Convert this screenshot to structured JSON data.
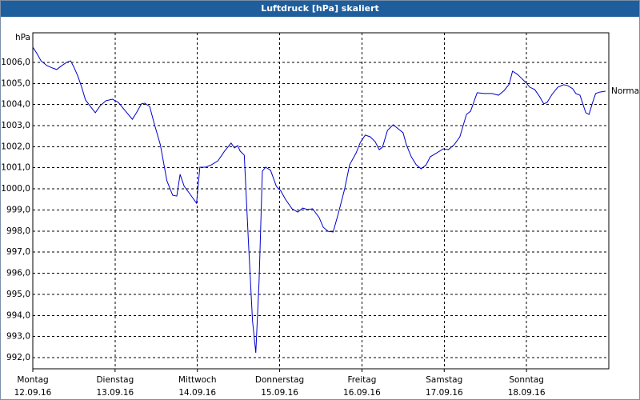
{
  "chart_data": {
    "type": "line",
    "title": "Luftdruck [hPa] skaliert",
    "y_label": "hPa",
    "annotation": "Normal",
    "grid": true,
    "xlim": [
      0,
      7
    ],
    "xticks": [
      {
        "value": 0,
        "label": [
          "Montag",
          "12.09.16"
        ]
      },
      {
        "value": 1,
        "label": [
          "Dienstag",
          "13.09.16"
        ]
      },
      {
        "value": 2,
        "label": [
          "Mittwoch",
          "14.09.16"
        ]
      },
      {
        "value": 3,
        "label": [
          "Donnerstag",
          "15.09.16"
        ]
      },
      {
        "value": 4,
        "label": [
          "Freitag",
          "16.09.16"
        ]
      },
      {
        "value": 5,
        "label": [
          "Samstag",
          "17.09.16"
        ]
      },
      {
        "value": 6,
        "label": [
          "Sonntag",
          "18.09.16"
        ]
      }
    ],
    "ylim": [
      991.47,
      1007.4
    ],
    "yticks": [
      {
        "value": 992,
        "label": "992,0"
      },
      {
        "value": 993,
        "label": "993,0"
      },
      {
        "value": 994,
        "label": "994,0"
      },
      {
        "value": 995,
        "label": "995,0"
      },
      {
        "value": 996,
        "label": "996,0"
      },
      {
        "value": 997,
        "label": "997,0"
      },
      {
        "value": 998,
        "label": "998,0"
      },
      {
        "value": 999,
        "label": "999,0"
      },
      {
        "value": 1000,
        "label": "1000,0"
      },
      {
        "value": 1001,
        "label": "1001,0"
      },
      {
        "value": 1002,
        "label": "1002,0"
      },
      {
        "value": 1003,
        "label": "1003,0"
      },
      {
        "value": 1004,
        "label": "1004,0"
      },
      {
        "value": 1005,
        "label": "1005,0"
      },
      {
        "value": 1006,
        "label": "1006,0"
      }
    ],
    "series": [
      {
        "color": "#0000cc",
        "x": [
          0,
          0.05,
          0.1,
          0.17,
          0.24,
          0.29,
          0.34,
          0.41,
          0.46,
          0.5,
          0.55,
          0.6,
          0.64,
          0.7,
          0.76,
          0.82,
          0.89,
          0.97,
          1.04,
          1.12,
          1.21,
          1.26,
          1.32,
          1.36,
          1.42,
          1.48,
          1.55,
          1.63,
          1.7,
          1.75,
          1.79,
          1.84,
          1.9,
          1.99,
          2.03,
          2.1,
          2.17,
          2.25,
          2.33,
          2.41,
          2.45,
          2.49,
          2.52,
          2.57,
          2.62,
          2.67,
          2.71,
          2.75,
          2.79,
          2.83,
          2.89,
          2.96,
          3.01,
          3.07,
          3.15,
          3.22,
          3.28,
          3.34,
          3.4,
          3.48,
          3.53,
          3.59,
          3.65,
          3.71,
          3.79,
          3.85,
          3.93,
          3.98,
          4.04,
          4.1,
          4.16,
          4.21,
          4.25,
          4.31,
          4.38,
          4.44,
          4.5,
          4.54,
          4.6,
          4.66,
          4.72,
          4.78,
          4.83,
          4.91,
          4.99,
          5.05,
          5.12,
          5.19,
          5.27,
          5.32,
          5.4,
          5.49,
          5.58,
          5.66,
          5.73,
          5.79,
          5.83,
          5.89,
          5.94,
          5.99,
          6.04,
          6.1,
          6.16,
          6.21,
          6.25,
          6.31,
          6.38,
          6.45,
          6.5,
          6.56,
          6.6,
          6.65,
          6.72,
          6.76,
          6.8,
          6.84,
          6.89,
          6.96
        ],
        "values": [
          1006.72,
          1006.42,
          1006.07,
          1005.85,
          1005.73,
          1005.66,
          1005.81,
          1006.0,
          1006.07,
          1005.77,
          1005.32,
          1004.75,
          1004.22,
          1003.91,
          1003.61,
          1003.95,
          1004.18,
          1004.25,
          1004.1,
          1003.72,
          1003.3,
          1003.61,
          1004.03,
          1004.06,
          1003.91,
          1003.04,
          1002.09,
          1000.38,
          999.7,
          999.66,
          1000.69,
          1000.12,
          999.81,
          999.32,
          1001.03,
          1001.03,
          1001.14,
          1001.33,
          1001.79,
          1002.17,
          1001.94,
          1002.05,
          1001.79,
          1001.6,
          997.54,
          993.75,
          992.23,
          995.64,
          1000.84,
          1001.03,
          1000.88,
          1000.12,
          999.93,
          999.51,
          999.06,
          998.9,
          999.09,
          999.02,
          999.06,
          998.64,
          998.18,
          997.99,
          997.96,
          998.79,
          1000.0,
          1001.14,
          1001.71,
          1002.2,
          1002.55,
          1002.47,
          1002.24,
          1001.86,
          1001.98,
          1002.77,
          1003.04,
          1002.85,
          1002.66,
          1002.09,
          1001.52,
          1001.14,
          1000.95,
          1001.14,
          1001.52,
          1001.71,
          1001.9,
          1001.86,
          1002.09,
          1002.47,
          1003.53,
          1003.68,
          1004.56,
          1004.52,
          1004.52,
          1004.44,
          1004.67,
          1004.97,
          1005.58,
          1005.43,
          1005.24,
          1005.05,
          1004.82,
          1004.71,
          1004.37,
          1004.03,
          1004.1,
          1004.48,
          1004.82,
          1004.94,
          1004.9,
          1004.75,
          1004.52,
          1004.44,
          1003.61,
          1003.53,
          1004.06,
          1004.52,
          1004.59,
          1004.63
        ]
      }
    ]
  }
}
